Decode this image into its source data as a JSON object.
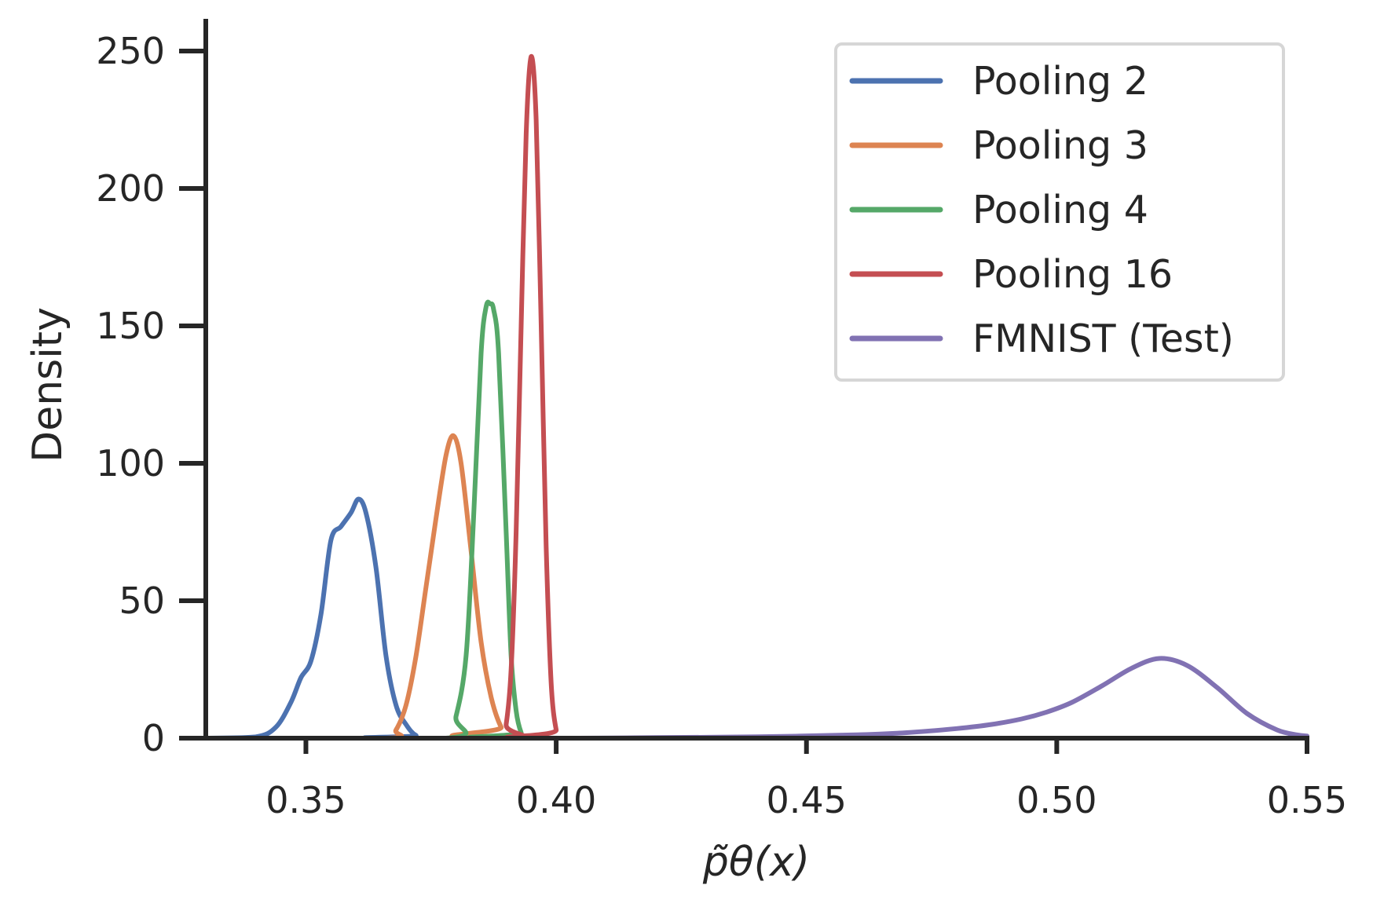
{
  "chart_data": {
    "type": "line",
    "title": "",
    "xlabel": "p̃θ(x)",
    "ylabel": "Density",
    "xlim": [
      0.33,
      0.55
    ],
    "ylim": [
      0,
      260
    ],
    "xticks": [
      0.35,
      0.4,
      0.45,
      0.5,
      0.55
    ],
    "xtick_labels": [
      "0.35",
      "0.40",
      "0.45",
      "0.50",
      "0.55"
    ],
    "yticks": [
      0,
      50,
      100,
      150,
      200,
      250
    ],
    "ytick_labels": [
      "0",
      "50",
      "100",
      "150",
      "200",
      "250"
    ],
    "grid": false,
    "legend_position": "top-right",
    "series": [
      {
        "name": "Pooling 2",
        "color": "#4c72b0",
        "points": [
          [
            0.33,
            0
          ],
          [
            0.34,
            0.5
          ],
          [
            0.344,
            4
          ],
          [
            0.347,
            13
          ],
          [
            0.349,
            22
          ],
          [
            0.351,
            28
          ],
          [
            0.353,
            45
          ],
          [
            0.355,
            72
          ],
          [
            0.357,
            77
          ],
          [
            0.359,
            82
          ],
          [
            0.3605,
            87
          ],
          [
            0.362,
            82
          ],
          [
            0.364,
            62
          ],
          [
            0.366,
            30
          ],
          [
            0.368,
            12
          ],
          [
            0.37,
            5
          ],
          [
            0.372,
            1
          ],
          [
            0.375,
            0
          ],
          [
            0.55,
            0
          ]
        ]
      },
      {
        "name": "Pooling 3",
        "color": "#dd8452",
        "points": [
          [
            0.33,
            0
          ],
          [
            0.366,
            0
          ],
          [
            0.368,
            3
          ],
          [
            0.37,
            12
          ],
          [
            0.372,
            30
          ],
          [
            0.374,
            55
          ],
          [
            0.376,
            80
          ],
          [
            0.378,
            103
          ],
          [
            0.3795,
            110
          ],
          [
            0.381,
            100
          ],
          [
            0.383,
            68
          ],
          [
            0.385,
            35
          ],
          [
            0.387,
            15
          ],
          [
            0.389,
            4
          ],
          [
            0.391,
            0
          ],
          [
            0.55,
            0
          ]
        ]
      },
      {
        "name": "Pooling 4",
        "color": "#55a868",
        "points": [
          [
            0.33,
            0
          ],
          [
            0.378,
            0
          ],
          [
            0.38,
            8
          ],
          [
            0.382,
            30
          ],
          [
            0.3835,
            80
          ],
          [
            0.385,
            140
          ],
          [
            0.386,
            157
          ],
          [
            0.3868,
            158
          ],
          [
            0.3875,
            156
          ],
          [
            0.3885,
            140
          ],
          [
            0.39,
            75
          ],
          [
            0.391,
            30
          ],
          [
            0.392,
            10
          ],
          [
            0.393,
            2
          ],
          [
            0.394,
            0
          ],
          [
            0.55,
            0
          ]
        ]
      },
      {
        "name": "Pooling 16",
        "color": "#c44e52",
        "points": [
          [
            0.33,
            0
          ],
          [
            0.389,
            0
          ],
          [
            0.39,
            5
          ],
          [
            0.391,
            25
          ],
          [
            0.392,
            75
          ],
          [
            0.393,
            150
          ],
          [
            0.394,
            220
          ],
          [
            0.395,
            248
          ],
          [
            0.396,
            225
          ],
          [
            0.397,
            150
          ],
          [
            0.398,
            70
          ],
          [
            0.399,
            20
          ],
          [
            0.4,
            3
          ],
          [
            0.401,
            0
          ],
          [
            0.55,
            0
          ]
        ]
      },
      {
        "name": "FMNIST (Test)",
        "color": "#8172b3",
        "points": [
          [
            0.33,
            0
          ],
          [
            0.4,
            0
          ],
          [
            0.42,
            0.2
          ],
          [
            0.44,
            0.5
          ],
          [
            0.46,
            1.2
          ],
          [
            0.47,
            2
          ],
          [
            0.48,
            3.5
          ],
          [
            0.487,
            5
          ],
          [
            0.493,
            7
          ],
          [
            0.498,
            9.5
          ],
          [
            0.503,
            13
          ],
          [
            0.509,
            19
          ],
          [
            0.515,
            25.5
          ],
          [
            0.5205,
            29
          ],
          [
            0.526,
            26.5
          ],
          [
            0.532,
            18.5
          ],
          [
            0.538,
            9
          ],
          [
            0.544,
            3
          ],
          [
            0.548,
            1.2
          ],
          [
            0.55,
            0.8
          ]
        ]
      }
    ]
  }
}
